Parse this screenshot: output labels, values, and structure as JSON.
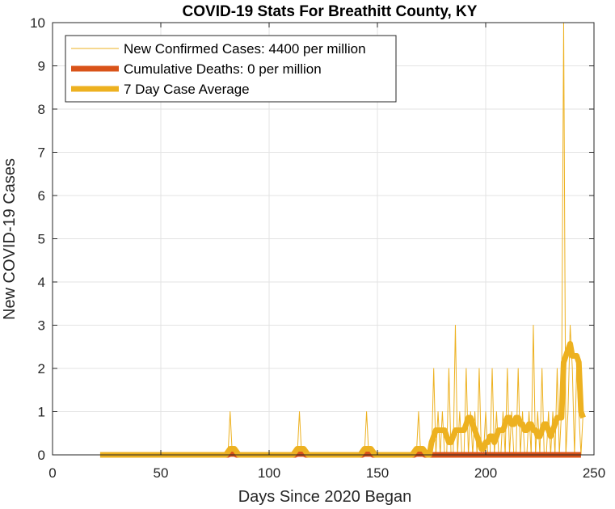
{
  "chart_data": {
    "type": "line",
    "title": "COVID-19 Stats For Breathitt County, KY",
    "xlabel": "Days Since 2020 Began",
    "ylabel": "New COVID-19 Cases",
    "xlim": [
      0,
      250
    ],
    "ylim": [
      0,
      10
    ],
    "xticks": [
      0,
      50,
      100,
      150,
      200,
      250
    ],
    "yticks": [
      0,
      1,
      2,
      3,
      4,
      5,
      6,
      7,
      8,
      9,
      10
    ],
    "grid": true,
    "legend_position": "top-left",
    "series": [
      {
        "name": "New Confirmed Cases: 4400 per million",
        "color": "#EDB120",
        "line_width": "thin",
        "x": [
          22,
          81,
          82,
          83,
          84,
          113,
          114,
          115,
          144,
          145,
          146,
          168,
          169,
          170,
          174,
          175,
          176,
          177,
          178,
          179,
          180,
          181,
          182,
          183,
          184,
          185,
          186,
          187,
          188,
          189,
          190,
          191,
          192,
          193,
          194,
          195,
          196,
          197,
          198,
          199,
          200,
          201,
          202,
          203,
          204,
          205,
          206,
          207,
          208,
          209,
          210,
          211,
          212,
          213,
          214,
          215,
          216,
          217,
          218,
          219,
          220,
          221,
          222,
          223,
          224,
          225,
          226,
          227,
          228,
          229,
          230,
          231,
          232,
          233,
          234,
          235,
          236,
          237,
          238,
          239,
          240,
          241,
          242,
          243,
          244,
          245
        ],
        "y": [
          0,
          0,
          1,
          0,
          0,
          0,
          1,
          0,
          0,
          1,
          0,
          0,
          1,
          0,
          0,
          0,
          2,
          0,
          1,
          0,
          1,
          0,
          0,
          2,
          0,
          0,
          3,
          0,
          1,
          0,
          0,
          2,
          0,
          1,
          0,
          1,
          0,
          2,
          0,
          0,
          1,
          0,
          0,
          2,
          0,
          1,
          0,
          0,
          1,
          0,
          2,
          0,
          1,
          0,
          0,
          2,
          0,
          1,
          0,
          0,
          1,
          0,
          3,
          0,
          1,
          0,
          2,
          0,
          0,
          1,
          0,
          1,
          0,
          2,
          0,
          1,
          10,
          0,
          1,
          3,
          2,
          0,
          2,
          1,
          0,
          1
        ]
      },
      {
        "name": "Cumulative Deaths: 0 per million",
        "color": "#D95319",
        "line_width": "thick",
        "x": [
          22,
          80,
          81,
          82,
          84,
          85,
          86,
          111,
          112,
          113,
          116,
          117,
          118,
          142,
          143,
          144,
          147,
          148,
          149,
          166,
          167,
          168,
          171,
          172,
          173,
          174,
          175,
          244
        ],
        "y": [
          0,
          0,
          0,
          0.02,
          0.02,
          0,
          0,
          0,
          0,
          0.02,
          0.02,
          0,
          0,
          0,
          0,
          0.02,
          0.02,
          0,
          0,
          0,
          0,
          0.02,
          0.02,
          0,
          0,
          0,
          0,
          0
        ]
      },
      {
        "name": "7 Day Case Average",
        "color": "#EDB120",
        "line_width": "thick",
        "x": [
          22,
          80,
          81,
          82,
          84,
          85,
          86,
          111,
          112,
          113,
          116,
          117,
          118,
          142,
          143,
          144,
          147,
          148,
          149,
          166,
          167,
          168,
          171,
          172,
          173,
          174,
          175,
          176,
          177,
          178,
          179,
          180,
          181,
          182,
          183,
          184,
          185,
          186,
          187,
          188,
          189,
          190,
          191,
          192,
          193,
          194,
          195,
          196,
          197,
          198,
          199,
          200,
          201,
          202,
          203,
          204,
          205,
          206,
          207,
          208,
          209,
          210,
          211,
          212,
          213,
          214,
          215,
          216,
          217,
          218,
          219,
          220,
          221,
          222,
          223,
          224,
          225,
          226,
          227,
          228,
          229,
          230,
          231,
          232,
          233,
          234,
          235,
          236,
          237,
          238,
          239,
          240,
          241,
          242,
          243,
          244,
          245
        ],
        "y": [
          0,
          0,
          0.07,
          0.14,
          0.14,
          0.07,
          0,
          0,
          0.07,
          0.14,
          0.14,
          0.07,
          0,
          0,
          0.07,
          0.14,
          0.14,
          0.07,
          0,
          0,
          0.07,
          0.14,
          0.14,
          0.07,
          0,
          0,
          0.29,
          0.43,
          0.57,
          0.57,
          0.57,
          0.57,
          0.57,
          0.43,
          0.29,
          0.29,
          0.43,
          0.57,
          0.57,
          0.57,
          0.57,
          0.57,
          0.71,
          0.86,
          0.86,
          0.71,
          0.57,
          0.43,
          0.29,
          0.14,
          0.14,
          0.29,
          0.29,
          0.43,
          0.43,
          0.29,
          0.43,
          0.57,
          0.57,
          0.57,
          0.71,
          0.86,
          0.86,
          0.71,
          0.71,
          0.86,
          0.86,
          0.71,
          0.71,
          0.57,
          0.57,
          0.71,
          0.71,
          0.57,
          0.57,
          0.43,
          0.43,
          0.57,
          0.71,
          0.71,
          0.57,
          0.43,
          0.57,
          0.71,
          0.86,
          0.86,
          0.86,
          2.14,
          2.29,
          2.43,
          2.57,
          2.29,
          2.29,
          2.29,
          2.14,
          1.0,
          0.86
        ]
      }
    ]
  }
}
